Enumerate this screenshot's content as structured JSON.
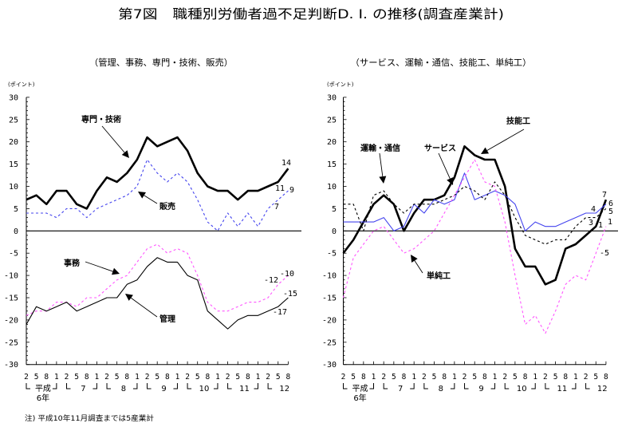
{
  "title": "第7図　職種別労働者過不足判断D. I. の推移(調査産業計)",
  "footnote": "注) 平成10年11月調査までは5産業計",
  "colors": {
    "axis": "#000000",
    "blue": "#4444ee",
    "magenta": "#ff55ff"
  },
  "chart_data": [
    {
      "type": "line",
      "title": "（管理、事務、専門・技術、販売）",
      "ylabel": "(ポイント)",
      "xlabel": "",
      "ylim": [
        -30,
        30
      ],
      "grid": false,
      "yticks": [
        "30",
        "25",
        "20",
        "15",
        "10",
        "5",
        "0",
        "-5",
        "-10",
        "-15",
        "-20",
        "-25",
        "-30"
      ],
      "x_tick_labels": [
        "2",
        "5",
        "8",
        "1",
        "2",
        "5",
        "8",
        "1",
        "2",
        "5",
        "8",
        "1",
        "2",
        "5",
        "8",
        "1",
        "2",
        "5",
        "8",
        "1",
        "2",
        "5",
        "8",
        "1",
        "2",
        "5",
        "8"
      ],
      "year_groups": [
        {
          "label": "平成",
          "sub": "6年"
        },
        {
          "label": "7"
        },
        {
          "label": "8"
        },
        {
          "label": "9"
        },
        {
          "label": "10"
        },
        {
          "label": "11"
        },
        {
          "label": "12"
        }
      ],
      "series": [
        {
          "name": "専門・技術",
          "color": "#000000",
          "line_style": "solid",
          "line_weight": "thick",
          "values": [
            7,
            8,
            6,
            9,
            9,
            6,
            5,
            9,
            12,
            11,
            13,
            16,
            21,
            19,
            20,
            21,
            18,
            13,
            10,
            9,
            9,
            7,
            9,
            9,
            10,
            11,
            14
          ]
        },
        {
          "name": "販売",
          "color": "#4444ee",
          "line_style": "dashed",
          "line_weight": "thin",
          "values": [
            4,
            4,
            4,
            3,
            5,
            5,
            3,
            5,
            6,
            7,
            8,
            10,
            16,
            13,
            11,
            13,
            11,
            7,
            2,
            0,
            4,
            1,
            4,
            1,
            5,
            7,
            9
          ]
        },
        {
          "name": "事務",
          "color": "#ff55ff",
          "line_style": "dashed",
          "line_weight": "thin",
          "values": [
            -19,
            -18,
            -18,
            -16,
            -16,
            -17,
            -15,
            -15,
            -13,
            -11,
            -10,
            -7,
            -4,
            -3,
            -5,
            -4,
            -5,
            -10,
            -16,
            -18,
            -18,
            -17,
            -16,
            -16,
            -15,
            -12,
            -10
          ]
        },
        {
          "name": "管理",
          "color": "#000000",
          "line_style": "solid",
          "line_weight": "thin",
          "values": [
            -21,
            -17,
            -18,
            -17,
            -16,
            -18,
            -17,
            -16,
            -15,
            -15,
            -12,
            -11,
            -8,
            -6,
            -7,
            -7,
            -10,
            -11,
            -18,
            -20,
            -22,
            -20,
            -19,
            -19,
            -18,
            -17,
            -15
          ]
        }
      ],
      "data_labels": [
        {
          "text": "14",
          "series": "専門・技術",
          "point": 26
        },
        {
          "text": "11",
          "series": "専門・技術",
          "point": 25
        },
        {
          "text": "9",
          "series": "販売",
          "point": 26
        },
        {
          "text": "7",
          "series": "販売",
          "point": 25
        },
        {
          "text": "-10",
          "series": "事務",
          "point": 26
        },
        {
          "text": "-12",
          "series": "事務",
          "point": 25
        },
        {
          "text": "-15",
          "series": "管理",
          "point": 26
        },
        {
          "text": "-17",
          "series": "管理",
          "point": 25
        }
      ]
    },
    {
      "type": "line",
      "title": "（サービス、運輸・通信、技能工、単純工）",
      "ylabel": "(ポイント)",
      "xlabel": "",
      "ylim": [
        -30,
        30
      ],
      "grid": false,
      "yticks": [
        "30",
        "25",
        "20",
        "15",
        "10",
        "5",
        "0",
        "-5",
        "-10",
        "-15",
        "-20",
        "-25",
        "-30"
      ],
      "x_tick_labels": [
        "2",
        "5",
        "8",
        "1",
        "2",
        "5",
        "8",
        "1",
        "2",
        "5",
        "8",
        "1",
        "2",
        "5",
        "8",
        "1",
        "2",
        "5",
        "8",
        "1",
        "2",
        "5",
        "8",
        "1",
        "2",
        "5",
        "8"
      ],
      "year_groups": [
        {
          "label": "平成",
          "sub": "6年"
        },
        {
          "label": "7"
        },
        {
          "label": "8"
        },
        {
          "label": "9"
        },
        {
          "label": "10"
        },
        {
          "label": "11"
        },
        {
          "label": "12"
        }
      ],
      "series": [
        {
          "name": "技能工",
          "color": "#000000",
          "line_style": "solid",
          "line_weight": "thick",
          "values": [
            -5,
            -2,
            2,
            6,
            8,
            6,
            0,
            4,
            7,
            7,
            8,
            12,
            19,
            17,
            16,
            16,
            10,
            -4,
            -8,
            -8,
            -12,
            -11,
            -4,
            -3,
            -1,
            1,
            7
          ]
        },
        {
          "name": "サービス",
          "color": "#4444ee",
          "line_style": "solid",
          "line_weight": "thin",
          "values": [
            2,
            2,
            2,
            2,
            3,
            0,
            1,
            6,
            4,
            7,
            6,
            7,
            13,
            7,
            8,
            9,
            8,
            6,
            0,
            2,
            1,
            1,
            2,
            3,
            4,
            4,
            6
          ]
        },
        {
          "name": "運輸・通信",
          "color": "#000000",
          "line_style": "dashed",
          "line_weight": "thin",
          "values": [
            6,
            6,
            0,
            8,
            9,
            6,
            4,
            6,
            6,
            6,
            7,
            8,
            10,
            9,
            7,
            11,
            8,
            3,
            -1,
            -2,
            -3,
            -2,
            -2,
            1,
            3,
            3,
            5
          ]
        },
        {
          "name": "単純工",
          "color": "#ff55ff",
          "line_style": "dashed",
          "line_weight": "thin",
          "values": [
            -15,
            -6,
            -3,
            0,
            1,
            -2,
            -5,
            -4,
            -2,
            0,
            4,
            8,
            12,
            16,
            11,
            10,
            2,
            -10,
            -21,
            -19,
            -23,
            -18,
            -12,
            -10,
            -11,
            -5,
            1
          ]
        }
      ],
      "data_labels": [
        {
          "text": "7",
          "series": "技能工",
          "point": 26
        },
        {
          "text": "1",
          "series": "技能工",
          "point": 25
        },
        {
          "text": "6",
          "series": "サービス",
          "point": 26
        },
        {
          "text": "4",
          "series": "サービス",
          "point": 25
        },
        {
          "text": "5",
          "series": "運輸・通信",
          "point": 26
        },
        {
          "text": "3",
          "series": "運輸・通信",
          "point": 25
        },
        {
          "text": "1",
          "series": "単純工",
          "point": 26
        },
        {
          "text": "-5",
          "series": "単純工",
          "point": 25
        }
      ]
    }
  ]
}
